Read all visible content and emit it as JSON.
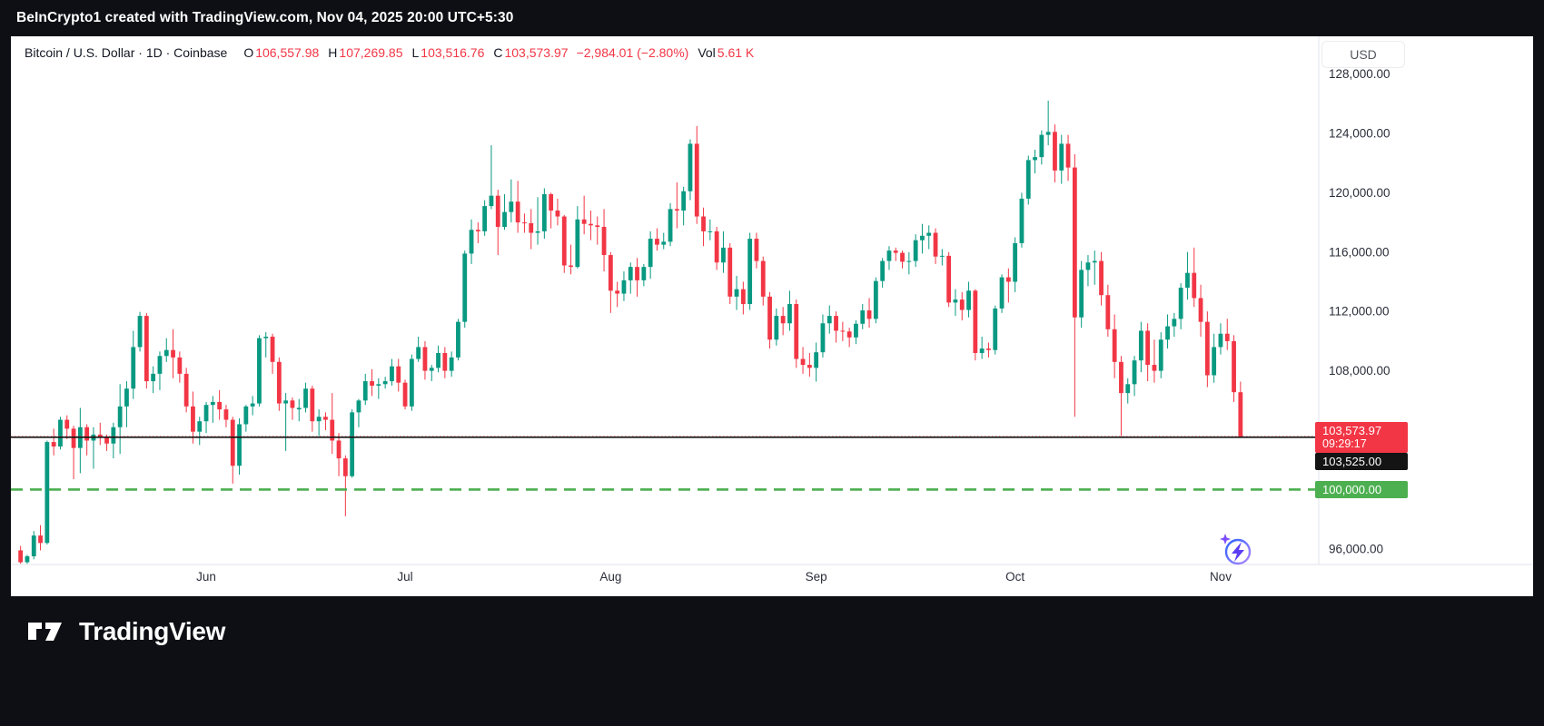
{
  "topbar": {
    "text": "BeInCrypto1 created with TradingView.com, Nov 04, 2025 20:00 UTC+5:30"
  },
  "header": {
    "title": "Bitcoin / U.S. Dollar · 1D · Coinbase",
    "ohlc": {
      "o_label": "O",
      "o_value": "106,557.98",
      "h_label": "H",
      "h_value": "107,269.85",
      "l_label": "L",
      "l_value": "103,516.76",
      "c_label": "C",
      "c_value": "103,573.97",
      "change": "−2,984.01 (−2.80%)",
      "vol_label": "Vol",
      "vol_value": "5.61 K"
    },
    "currency_button": "USD"
  },
  "footer": {
    "brand": "TradingView"
  },
  "chart_data": {
    "type": "candlestick",
    "title": "Bitcoin / U.S. Dollar daily candles, Coinbase",
    "interval": "1D",
    "start_date": "2025-05-04",
    "colors": {
      "up": "#089981",
      "down": "#f23645",
      "axis_text": "#2a2e39",
      "grid_border": "#e0e3eb"
    },
    "y_axis": {
      "min": 94950,
      "max": 128340,
      "ticks": [
        {
          "value": 96000,
          "label": "96,000.00"
        },
        {
          "value": 100000,
          "label": "100,000.00"
        },
        {
          "value": 104000,
          "label": "104,000.00"
        },
        {
          "value": 108000,
          "label": "108,000.00"
        },
        {
          "value": 112000,
          "label": "112,000.00"
        },
        {
          "value": 116000,
          "label": "116,000.00"
        },
        {
          "value": 120000,
          "label": "120,000.00"
        },
        {
          "value": 124000,
          "label": "124,000.00"
        },
        {
          "value": 128000,
          "label": "128,000.00"
        }
      ]
    },
    "x_labels": [
      {
        "label": "Jun",
        "index": 28
      },
      {
        "label": "Jul",
        "index": 58
      },
      {
        "label": "Aug",
        "index": 89
      },
      {
        "label": "Sep",
        "index": 120
      },
      {
        "label": "Oct",
        "index": 150
      },
      {
        "label": "Nov",
        "index": 181
      }
    ],
    "lines": [
      {
        "name": "current-price-line",
        "style": "dotted",
        "color": "#f23645",
        "width": 1,
        "dash": "1.5 2.5",
        "value": 103573.97,
        "label": "103,573.97",
        "countdown": "09:29:17"
      },
      {
        "name": "horizontal-alert-line",
        "style": "solid",
        "color": "#141414",
        "width": 1.6,
        "dash": "",
        "value": 103525,
        "label": "103,525.00"
      },
      {
        "name": "level-100k-line",
        "style": "dashed",
        "color": "#4caf50",
        "width": 2.6,
        "dash": "13 8",
        "value": 100000,
        "label": "100,000.00"
      }
    ],
    "candles": [
      [
        95900,
        96200,
        95000,
        95100
      ],
      [
        95100,
        95600,
        95000,
        95500
      ],
      [
        95500,
        97200,
        95300,
        96900
      ],
      [
        96900,
        97600,
        95900,
        96400
      ],
      [
        96400,
        103300,
        96300,
        103200
      ],
      [
        103200,
        104100,
        102300,
        102900
      ],
      [
        102900,
        104900,
        102700,
        104700
      ],
      [
        104700,
        105000,
        103400,
        104100
      ],
      [
        104100,
        104300,
        100700,
        102800
      ],
      [
        102800,
        105500,
        101100,
        104200
      ],
      [
        104200,
        104400,
        102300,
        103300
      ],
      [
        103300,
        104200,
        101400,
        103700
      ],
      [
        103700,
        104500,
        103000,
        103500
      ],
      [
        103500,
        103700,
        102600,
        103100
      ],
      [
        103100,
        104500,
        102100,
        104200
      ],
      [
        104200,
        107100,
        102400,
        105600
      ],
      [
        105600,
        107300,
        104200,
        106800
      ],
      [
        106800,
        110700,
        106100,
        109600
      ],
      [
        109600,
        111970,
        109300,
        111700
      ],
      [
        111700,
        111900,
        106800,
        107300
      ],
      [
        107300,
        108300,
        106500,
        107800
      ],
      [
        107800,
        109300,
        106700,
        109000
      ],
      [
        109000,
        110200,
        108600,
        109400
      ],
      [
        109400,
        110800,
        107500,
        108900
      ],
      [
        108900,
        109300,
        107200,
        107800
      ],
      [
        107800,
        108200,
        105200,
        105600
      ],
      [
        105600,
        106600,
        103100,
        103900
      ],
      [
        103900,
        104900,
        103000,
        104600
      ],
      [
        104600,
        105900,
        103800,
        105700
      ],
      [
        105700,
        106300,
        104500,
        105900
      ],
      [
        105900,
        106700,
        104700,
        105400
      ],
      [
        105400,
        105700,
        104200,
        104700
      ],
      [
        104700,
        104900,
        100400,
        101600
      ],
      [
        101600,
        104800,
        101000,
        104400
      ],
      [
        104400,
        105700,
        103900,
        105600
      ],
      [
        105600,
        106300,
        105000,
        105800
      ],
      [
        105800,
        110400,
        105600,
        110200
      ],
      [
        110200,
        110600,
        108900,
        110300
      ],
      [
        110300,
        110500,
        107800,
        108600
      ],
      [
        108600,
        108900,
        105300,
        105800
      ],
      [
        105800,
        106500,
        102600,
        106000
      ],
      [
        106000,
        106200,
        104700,
        105500
      ],
      [
        105400,
        106100,
        104600,
        105500
      ],
      [
        105500,
        107200,
        105200,
        106800
      ],
      [
        106800,
        107000,
        103900,
        104600
      ],
      [
        104600,
        105400,
        103600,
        104900
      ],
      [
        104900,
        105200,
        104000,
        104700
      ],
      [
        104700,
        106500,
        102400,
        103300
      ],
      [
        103300,
        103800,
        100900,
        102100
      ],
      [
        102100,
        102300,
        98200,
        100900
      ],
      [
        100900,
        105400,
        100800,
        105200
      ],
      [
        105200,
        106100,
        104200,
        106000
      ],
      [
        106000,
        107800,
        105700,
        107300
      ],
      [
        107300,
        108100,
        106300,
        107000
      ],
      [
        107000,
        107500,
        106100,
        107100
      ],
      [
        107100,
        107600,
        106800,
        107300
      ],
      [
        107300,
        108800,
        107000,
        108300
      ],
      [
        108300,
        108800,
        106600,
        107200
      ],
      [
        107200,
        107400,
        105400,
        105600
      ],
      [
        105600,
        109100,
        105300,
        108800
      ],
      [
        108800,
        110300,
        108600,
        109600
      ],
      [
        109600,
        110000,
        107400,
        108000
      ],
      [
        108000,
        108400,
        107300,
        108200
      ],
      [
        108200,
        109700,
        107900,
        109200
      ],
      [
        109200,
        109600,
        107500,
        108000
      ],
      [
        108000,
        109300,
        107600,
        108900
      ],
      [
        108900,
        111500,
        108700,
        111300
      ],
      [
        111300,
        116100,
        110900,
        115900
      ],
      [
        115900,
        118200,
        115200,
        117500
      ],
      [
        117500,
        118000,
        116600,
        117400
      ],
      [
        117400,
        119500,
        117100,
        119100
      ],
      [
        119100,
        123200,
        118900,
        119800
      ],
      [
        119800,
        120200,
        115800,
        117700
      ],
      [
        117700,
        119900,
        117500,
        118700
      ],
      [
        118700,
        120900,
        118000,
        119400
      ],
      [
        119400,
        120800,
        117300,
        118000
      ],
      [
        118000,
        118600,
        117300,
        117950
      ],
      [
        117950,
        118900,
        116200,
        117300
      ],
      [
        117300,
        119700,
        116500,
        117400
      ],
      [
        117400,
        120300,
        116900,
        119900
      ],
      [
        119900,
        120000,
        117600,
        118800
      ],
      [
        118800,
        119600,
        117800,
        118400
      ],
      [
        118400,
        118500,
        114600,
        115100
      ],
      [
        115100,
        116500,
        114500,
        115000
      ],
      [
        115000,
        119100,
        114900,
        118200
      ],
      [
        118200,
        119800,
        117200,
        117900
      ],
      [
        117900,
        118800,
        116800,
        117800
      ],
      [
        117800,
        118400,
        116500,
        117700
      ],
      [
        117700,
        118900,
        114700,
        115800
      ],
      [
        115800,
        116000,
        111900,
        113400
      ],
      [
        113400,
        114000,
        112300,
        113200
      ],
      [
        113200,
        114700,
        112700,
        114100
      ],
      [
        114100,
        115300,
        113200,
        115000
      ],
      [
        115000,
        115600,
        113000,
        114100
      ],
      [
        114100,
        115200,
        113700,
        115000
      ],
      [
        115000,
        117400,
        114200,
        116900
      ],
      [
        116900,
        117600,
        116100,
        116500
      ],
      [
        116500,
        117300,
        116200,
        116700
      ],
      [
        116700,
        119300,
        116400,
        118900
      ],
      [
        118900,
        120700,
        117600,
        118800
      ],
      [
        118800,
        120400,
        117800,
        120100
      ],
      [
        120100,
        123600,
        119500,
        123300
      ],
      [
        123300,
        124500,
        117900,
        118400
      ],
      [
        118400,
        119000,
        116400,
        117400
      ],
      [
        117350,
        118200,
        116800,
        117400
      ],
      [
        117400,
        117700,
        114800,
        115300
      ],
      [
        115300,
        117400,
        114600,
        116300
      ],
      [
        116300,
        116600,
        112500,
        113000
      ],
      [
        113000,
        114400,
        112100,
        113500
      ],
      [
        113500,
        114000,
        111800,
        112500
      ],
      [
        112500,
        117300,
        112100,
        116900
      ],
      [
        116900,
        117300,
        114900,
        115400
      ],
      [
        115400,
        115700,
        112400,
        113000
      ],
      [
        113000,
        113300,
        109500,
        110100
      ],
      [
        110100,
        112200,
        109700,
        111700
      ],
      [
        111700,
        112300,
        110400,
        111200
      ],
      [
        111200,
        113400,
        110700,
        112500
      ],
      [
        112500,
        112800,
        108200,
        108800
      ],
      [
        108800,
        109600,
        107800,
        108400
      ],
      [
        108400,
        109200,
        107600,
        108200
      ],
      [
        108200,
        109900,
        107270,
        109250
      ],
      [
        109250,
        111800,
        108900,
        111200
      ],
      [
        111200,
        112400,
        110500,
        111700
      ],
      [
        111700,
        112000,
        109900,
        110700
      ],
      [
        110700,
        111300,
        110000,
        110650
      ],
      [
        110650,
        110900,
        109600,
        110250
      ],
      [
        110250,
        111400,
        109800,
        111170
      ],
      [
        111170,
        112500,
        110800,
        112070
      ],
      [
        112070,
        112900,
        110900,
        111500
      ],
      [
        111500,
        114300,
        111200,
        114050
      ],
      [
        114050,
        115600,
        113600,
        115400
      ],
      [
        115400,
        116400,
        114800,
        116100
      ],
      [
        116100,
        116300,
        115400,
        115950
      ],
      [
        115950,
        116100,
        114900,
        115350
      ],
      [
        115350,
        116000,
        114500,
        115400
      ],
      [
        115400,
        117200,
        115000,
        116800
      ],
      [
        116800,
        117900,
        115900,
        117100
      ],
      [
        117100,
        117800,
        116200,
        117300
      ],
      [
        117300,
        117600,
        115200,
        115700
      ],
      [
        115700,
        116200,
        115100,
        115750
      ],
      [
        115750,
        116000,
        112300,
        112600
      ],
      [
        112600,
        113500,
        111700,
        112800
      ],
      [
        112800,
        113300,
        111400,
        112100
      ],
      [
        112100,
        114000,
        111600,
        113400
      ],
      [
        113400,
        113500,
        108700,
        109200
      ],
      [
        109200,
        110300,
        108800,
        109500
      ],
      [
        109500,
        109900,
        108900,
        109400
      ],
      [
        109400,
        112400,
        109100,
        112200
      ],
      [
        112200,
        114500,
        111900,
        114300
      ],
      [
        114300,
        114900,
        112600,
        114000
      ],
      [
        114000,
        117000,
        113300,
        116600
      ],
      [
        116600,
        120000,
        116300,
        119600
      ],
      [
        119600,
        122500,
        119200,
        122200
      ],
      [
        122200,
        122900,
        121300,
        122400
      ],
      [
        122400,
        124200,
        121900,
        123900
      ],
      [
        123900,
        126200,
        123200,
        124100
      ],
      [
        124100,
        124600,
        120700,
        121500
      ],
      [
        121500,
        123900,
        120600,
        123300
      ],
      [
        123300,
        123900,
        120800,
        121700
      ],
      [
        121700,
        122600,
        104900,
        111600
      ],
      [
        111600,
        115400,
        110900,
        114800
      ],
      [
        114800,
        115800,
        113700,
        115300
      ],
      [
        115300,
        116100,
        113800,
        115400
      ],
      [
        115400,
        116000,
        112400,
        113100
      ],
      [
        113100,
        113800,
        110300,
        110800
      ],
      [
        110800,
        111800,
        107500,
        108600
      ],
      [
        108600,
        109000,
        103600,
        106500
      ],
      [
        106500,
        107500,
        105800,
        107100
      ],
      [
        107100,
        109000,
        106300,
        108700
      ],
      [
        108700,
        111300,
        107900,
        110700
      ],
      [
        110700,
        111200,
        107300,
        108400
      ],
      [
        108400,
        110100,
        107200,
        108000
      ],
      [
        108000,
        110600,
        107500,
        110100
      ],
      [
        110100,
        111800,
        109500,
        111000
      ],
      [
        111000,
        111900,
        110300,
        111500
      ],
      [
        111500,
        113900,
        110800,
        113600
      ],
      [
        113600,
        116000,
        112800,
        114600
      ],
      [
        114600,
        116300,
        112300,
        112900
      ],
      [
        112900,
        113800,
        110300,
        111300
      ],
      [
        111300,
        112000,
        106900,
        107700
      ],
      [
        107700,
        110500,
        107200,
        109600
      ],
      [
        109600,
        111200,
        109100,
        110500
      ],
      [
        110500,
        111500,
        109400,
        110000
      ],
      [
        110000,
        110400,
        105900,
        106558
      ],
      [
        106557.98,
        107269.85,
        103516.76,
        103573.97
      ]
    ]
  }
}
